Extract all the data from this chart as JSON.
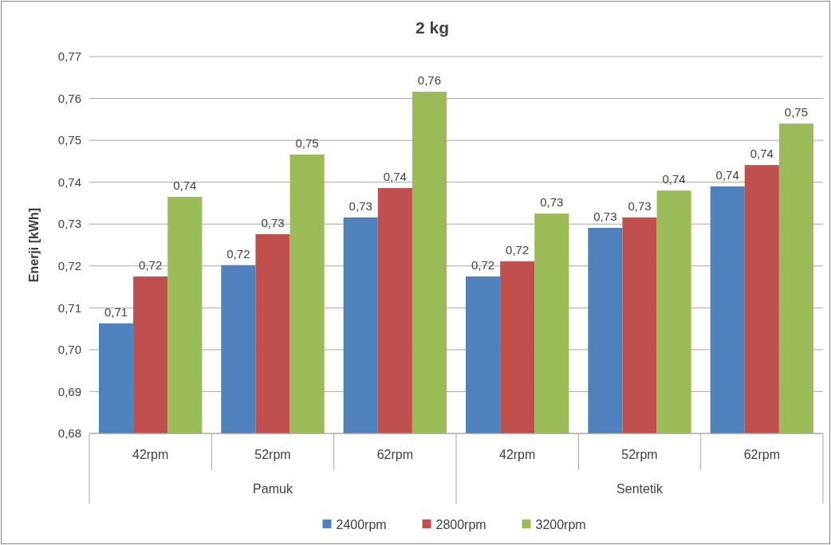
{
  "chart_data": {
    "type": "bar",
    "title": "2 kg",
    "ylabel": "Enerji [kWh]",
    "categories": [
      "42rpm",
      "52rpm",
      "62rpm",
      "42rpm",
      "52rpm",
      "62rpm"
    ],
    "series": [
      {
        "name": "2400rpm",
        "color": "#4f81bd",
        "values": [
          0.7063,
          0.7202,
          0.7316,
          0.7175,
          0.7291,
          0.739
        ],
        "value_labels": [
          "0,71",
          "0,72",
          "0,73",
          "0,72",
          "0,73",
          "0,74"
        ]
      },
      {
        "name": "2800rpm",
        "color": "#c0504d",
        "values": [
          0.7175,
          0.7276,
          0.7386,
          0.7211,
          0.7316,
          0.7441
        ],
        "value_labels": [
          "0,72",
          "0,73",
          "0,74",
          "0,72",
          "0,73",
          "0,74"
        ]
      },
      {
        "name": "3200rpm",
        "color": "#9bbb59",
        "values": [
          0.7365,
          0.7466,
          0.7616,
          0.7325,
          0.738,
          0.754
        ],
        "value_labels": [
          "0,74",
          "0,75",
          "0,76",
          "0,73",
          "0,74",
          "0,75"
        ]
      }
    ],
    "annotations": [
      "Pamuk",
      "Sentetik"
    ],
    "ylim": [
      0.68,
      0.77
    ],
    "yticks": [
      {
        "value": 0.68,
        "label": "0,68"
      },
      {
        "value": 0.69,
        "label": "0,69"
      },
      {
        "value": 0.7,
        "label": "0,70"
      },
      {
        "value": 0.71,
        "label": "0,71"
      },
      {
        "value": 0.72,
        "label": "0,72"
      },
      {
        "value": 0.73,
        "label": "0,73"
      },
      {
        "value": 0.74,
        "label": "0,74"
      },
      {
        "value": 0.75,
        "label": "0,75"
      },
      {
        "value": 0.76,
        "label": "0,76"
      },
      {
        "value": 0.77,
        "label": "0,77"
      }
    ],
    "grid": "y",
    "legend": "bottom"
  }
}
